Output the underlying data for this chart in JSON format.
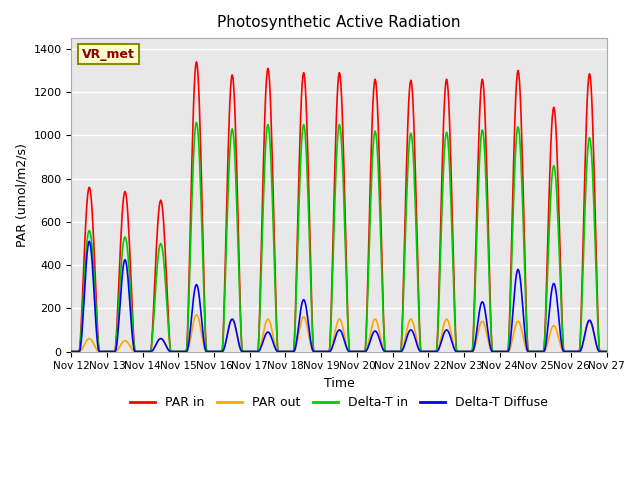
{
  "title": "Photosynthetic Active Radiation",
  "ylabel": "PAR (umol/m2/s)",
  "xlabel": "Time",
  "xlim_start": 0,
  "xlim_end": 360,
  "ylim": [
    0,
    1450
  ],
  "yticks": [
    0,
    200,
    400,
    600,
    800,
    1000,
    1200,
    1400
  ],
  "xtick_labels": [
    "Nov 12",
    "Nov 13",
    "Nov 14",
    "Nov 15",
    "Nov 16",
    "Nov 17",
    "Nov 18",
    "Nov 19",
    "Nov 20",
    "Nov 21",
    "Nov 22",
    "Nov 23",
    "Nov 24",
    "Nov 25",
    "Nov 26",
    "Nov 27"
  ],
  "legend_labels": [
    "PAR in",
    "PAR out",
    "Delta-T in",
    "Delta-T Diffuse"
  ],
  "legend_colors": [
    "red",
    "orange",
    "lime",
    "blue"
  ],
  "colors": {
    "par_in": "#ff0000",
    "par_out": "#ffa500",
    "delta_t_in": "#00cc00",
    "delta_t_diffuse": "#0000ff"
  },
  "annotation_text": "VR_met",
  "annotation_color": "#8B0000",
  "annotation_bg": "#ffffcc",
  "annotation_border": "#8B8B00",
  "background_gray": "#e8e8e8",
  "grid_color": "white"
}
